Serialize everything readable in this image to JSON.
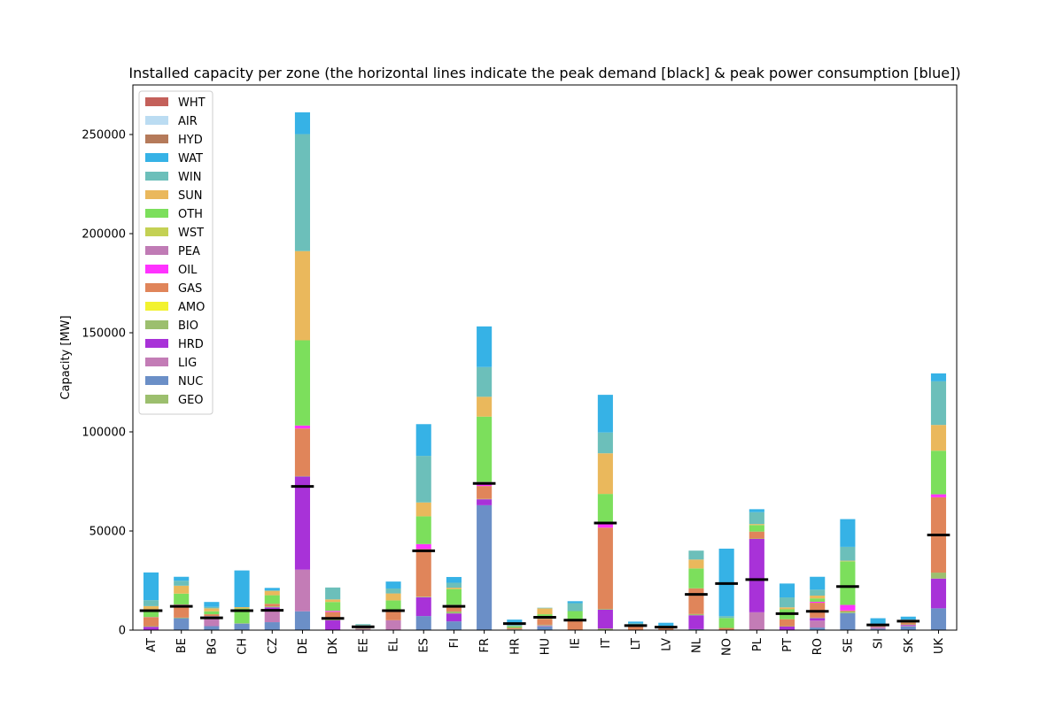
{
  "chart_data": {
    "type": "bar",
    "stacked": true,
    "title": "Installed capacity per zone (the horizontal lines indicate the peak demand [black] & peak power consumption [blue])",
    "xlabel": "",
    "ylabel": "Capacity [MW]",
    "ylim": [
      0,
      275000
    ],
    "yticks": [
      0,
      50000,
      100000,
      150000,
      200000,
      250000
    ],
    "legend_position": "upper-left",
    "categories": [
      "AT",
      "BE",
      "BG",
      "CH",
      "CZ",
      "DE",
      "DK",
      "EE",
      "EL",
      "ES",
      "FI",
      "FR",
      "HR",
      "HU",
      "IE",
      "IT",
      "LT",
      "LV",
      "NL",
      "NO",
      "PL",
      "PT",
      "RO",
      "SE",
      "SI",
      "SK",
      "UK"
    ],
    "series": [
      {
        "name": "GEO",
        "color": "#9cbf6e",
        "values": [
          0,
          0,
          0,
          0,
          0,
          0,
          0,
          0,
          0,
          0,
          0,
          0,
          0,
          0,
          0,
          800,
          0,
          0,
          0,
          0,
          0,
          0,
          0,
          0,
          0,
          0,
          0
        ]
      },
      {
        "name": "NUC",
        "color": "#6b8fc7",
        "values": [
          0,
          6000,
          2000,
          3300,
          4000,
          9500,
          0,
          0,
          0,
          7100,
          4400,
          63000,
          0,
          1900,
          0,
          0,
          0,
          0,
          500,
          0,
          0,
          0,
          1300,
          8600,
          700,
          1900,
          11000
        ]
      },
      {
        "name": "LIG",
        "color": "#c37cb6",
        "values": [
          200,
          0,
          4500,
          0,
          6000,
          21000,
          0,
          500,
          5000,
          0,
          0,
          0,
          0,
          500,
          0,
          0,
          0,
          0,
          0,
          0,
          9000,
          0,
          3500,
          0,
          1000,
          500,
          0
        ]
      },
      {
        "name": "HRD",
        "color": "#a832d8",
        "values": [
          1500,
          0,
          500,
          0,
          1500,
          47000,
          5000,
          0,
          0,
          9500,
          4000,
          3000,
          300,
          0,
          0,
          9500,
          0,
          0,
          7000,
          0,
          37000,
          1800,
          1300,
          0,
          0,
          300,
          15000
        ]
      },
      {
        "name": "BIO",
        "color": "#9cbf6e",
        "values": [
          300,
          300,
          100,
          0,
          500,
          200,
          1200,
          200,
          0,
          300,
          1000,
          200,
          200,
          300,
          100,
          400,
          100,
          100,
          600,
          100,
          200,
          200,
          200,
          800,
          0,
          200,
          3000
        ]
      },
      {
        "name": "AMO",
        "color": "#f2f22e",
        "values": [
          0,
          0,
          0,
          0,
          0,
          0,
          0,
          0,
          0,
          0,
          0,
          0,
          0,
          0,
          0,
          0,
          0,
          0,
          0,
          0,
          0,
          0,
          0,
          0,
          0,
          0,
          0
        ]
      },
      {
        "name": "GAS",
        "color": "#e0855a",
        "values": [
          4500,
          6500,
          900,
          100,
          1300,
          24000,
          3000,
          100,
          5000,
          24000,
          2000,
          6500,
          700,
          3000,
          4500,
          41000,
          2000,
          1500,
          13000,
          1000,
          3500,
          3500,
          7500,
          500,
          300,
          900,
          38000
        ]
      },
      {
        "name": "OIL",
        "color": "#ff33ff",
        "values": [
          100,
          100,
          0,
          0,
          0,
          1500,
          500,
          0,
          500,
          2500,
          1300,
          2000,
          0,
          0,
          500,
          2000,
          0,
          0,
          0,
          0,
          0,
          0,
          500,
          2800,
          0,
          0,
          1500
        ]
      },
      {
        "name": "PEA",
        "color": "#c07bb5",
        "values": [
          0,
          0,
          0,
          0,
          0,
          0,
          0,
          1000,
          0,
          0,
          0,
          0,
          0,
          0,
          0,
          0,
          0,
          0,
          0,
          0,
          0,
          0,
          0,
          0,
          0,
          0,
          0
        ]
      },
      {
        "name": "WST",
        "color": "#c4d154",
        "values": [
          0,
          0,
          0,
          0,
          0,
          0,
          0,
          0,
          0,
          0,
          0,
          0,
          0,
          0,
          0,
          0,
          0,
          0,
          0,
          0,
          0,
          0,
          0,
          0,
          0,
          0,
          0
        ]
      },
      {
        "name": "OTH",
        "color": "#7cdf5c",
        "values": [
          3000,
          5500,
          1500,
          7500,
          4300,
          43000,
          4500,
          500,
          4500,
          14000,
          8000,
          33000,
          700,
          2300,
          4500,
          15000,
          700,
          500,
          10000,
          5000,
          3300,
          5000,
          1700,
          22000,
          200,
          800,
          22000
        ]
      },
      {
        "name": "SUN",
        "color": "#eab85c",
        "values": [
          2500,
          4000,
          1500,
          700,
          2200,
          45000,
          1300,
          100,
          3500,
          7000,
          700,
          10000,
          100,
          3000,
          0,
          20500,
          100,
          0,
          4500,
          0,
          500,
          1000,
          1400,
          300,
          300,
          600,
          13000
        ]
      },
      {
        "name": "WIN",
        "color": "#6cbfba",
        "values": [
          3000,
          2500,
          700,
          0,
          300,
          59000,
          6000,
          600,
          2500,
          23500,
          2500,
          15000,
          600,
          300,
          4000,
          10500,
          500,
          100,
          4500,
          1000,
          6000,
          5000,
          3000,
          7000,
          0,
          100,
          22000
        ]
      },
      {
        "name": "WAT",
        "color": "#36b2e6",
        "values": [
          14000,
          2000,
          2500,
          18500,
          1200,
          11000,
          0,
          0,
          3500,
          16000,
          2900,
          20500,
          2700,
          0,
          1000,
          19000,
          900,
          1500,
          0,
          34000,
          1500,
          7000,
          6500,
          14000,
          3500,
          1500,
          4000
        ]
      },
      {
        "name": "HYD",
        "color": "#b57a5a",
        "values": [
          0,
          0,
          0,
          0,
          0,
          0,
          0,
          0,
          0,
          0,
          0,
          0,
          0,
          0,
          0,
          0,
          0,
          0,
          0,
          0,
          0,
          0,
          0,
          0,
          0,
          0,
          0
        ]
      },
      {
        "name": "AIR",
        "color": "#bbdcf2",
        "values": [
          0,
          0,
          0,
          0,
          0,
          0,
          0,
          0,
          0,
          0,
          0,
          0,
          0,
          0,
          0,
          0,
          0,
          0,
          0,
          0,
          0,
          0,
          0,
          0,
          0,
          0,
          0
        ]
      },
      {
        "name": "WHT",
        "color": "#c4605a",
        "values": [
          0,
          0,
          0,
          0,
          0,
          0,
          0,
          0,
          0,
          0,
          0,
          0,
          0,
          0,
          0,
          0,
          0,
          0,
          0,
          0,
          0,
          0,
          0,
          0,
          0,
          0,
          0
        ]
      }
    ],
    "peak_demand": [
      9800,
      12000,
      6200,
      9800,
      10000,
      72500,
      5900,
      1700,
      9800,
      40000,
      12000,
      74000,
      3300,
      6500,
      5000,
      54000,
      2300,
      1500,
      18000,
      23500,
      25500,
      8300,
      9500,
      22000,
      2600,
      4500,
      48000
    ],
    "peak_demand_color": "#000000"
  }
}
